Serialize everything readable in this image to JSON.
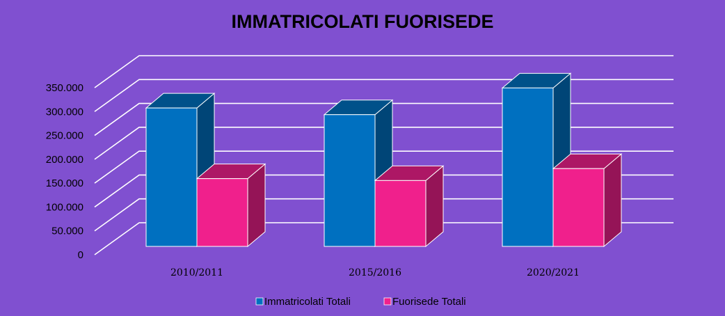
{
  "chart_data": {
    "type": "bar",
    "title": "IMMATRICOLATI FUORISEDE",
    "xlabel": "",
    "ylabel": "",
    "categories": [
      "2010/2011",
      "2015/2016",
      "2020/2021"
    ],
    "series": [
      {
        "name": "Immatricolati Totali",
        "values": [
          290000,
          276000,
          332000
        ],
        "color": "#0070c0"
      },
      {
        "name": "Fuorisede Totali",
        "values": [
          142000,
          138000,
          163000
        ],
        "color": "#f0208c"
      }
    ],
    "ylim": [
      0,
      350000
    ],
    "yticks": [
      0,
      50000,
      100000,
      150000,
      200000,
      250000,
      300000,
      350000
    ],
    "ytick_labels": [
      "0",
      "50.000",
      "100.000",
      "150.000",
      "200.000",
      "250.000",
      "300.000",
      "350.000"
    ],
    "grid": true,
    "legend_position": "bottom",
    "background_color": "#8050d0",
    "gridline_color": "#ffffff"
  }
}
